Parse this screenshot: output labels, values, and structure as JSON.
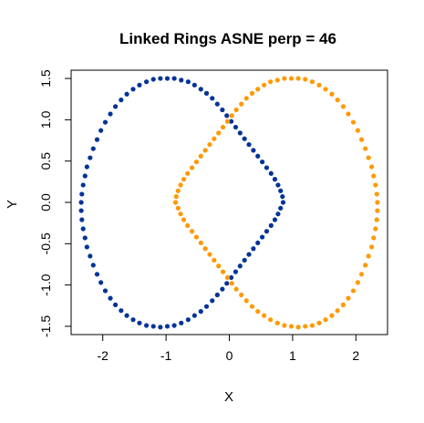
{
  "chart_data": {
    "type": "scatter",
    "title": "Linked Rings ASNE perp = 46",
    "xlabel": "X",
    "ylabel": "Y",
    "xlim": [
      -2.5,
      2.5
    ],
    "ylim": [
      -1.6,
      1.6
    ],
    "x_ticks": [
      -2,
      -1,
      0,
      1,
      2
    ],
    "y_ticks": [
      -1.5,
      -1.0,
      -0.5,
      0.0,
      0.5,
      1.0,
      1.5
    ],
    "x_tick_labels": [
      "-2",
      "-1",
      "0",
      "1",
      "2"
    ],
    "y_tick_labels": [
      "-1.5",
      "-1.0",
      "-0.5",
      "0.0",
      "0.5",
      "1.0",
      "1.5"
    ],
    "grid": false,
    "legend": "none",
    "series": [
      {
        "color": "#003399",
        "points": [
          [
            0.85,
            0.0
          ],
          [
            0.84,
            0.07
          ],
          [
            0.81,
            0.14
          ],
          [
            0.77,
            0.21
          ],
          [
            0.72,
            0.28
          ],
          [
            0.66,
            0.35
          ],
          [
            0.59,
            0.42
          ],
          [
            0.52,
            0.49
          ],
          [
            0.45,
            0.56
          ],
          [
            0.38,
            0.63
          ],
          [
            0.31,
            0.7
          ],
          [
            0.24,
            0.77
          ],
          [
            0.17,
            0.84
          ],
          [
            0.1,
            0.91
          ],
          [
            0.03,
            0.98
          ],
          [
            -0.04,
            1.05
          ],
          [
            -0.11,
            1.12
          ],
          [
            -0.19,
            1.19
          ],
          [
            -0.27,
            1.26
          ],
          [
            -0.36,
            1.32
          ],
          [
            -0.45,
            1.37
          ],
          [
            -0.55,
            1.42
          ],
          [
            -0.65,
            1.46
          ],
          [
            -0.76,
            1.48
          ],
          [
            -0.87,
            1.5
          ],
          [
            -0.98,
            1.5
          ],
          [
            -1.09,
            1.5
          ],
          [
            -1.2,
            1.49
          ],
          [
            -1.31,
            1.46
          ],
          [
            -1.42,
            1.42
          ],
          [
            -1.52,
            1.37
          ],
          [
            -1.62,
            1.31
          ],
          [
            -1.71,
            1.24
          ],
          [
            -1.8,
            1.16
          ],
          [
            -1.88,
            1.07
          ],
          [
            -1.96,
            0.97
          ],
          [
            -2.03,
            0.87
          ],
          [
            -2.09,
            0.76
          ],
          [
            -2.15,
            0.65
          ],
          [
            -2.2,
            0.54
          ],
          [
            -2.25,
            0.43
          ],
          [
            -2.28,
            0.32
          ],
          [
            -2.31,
            0.21
          ],
          [
            -2.33,
            0.1
          ],
          [
            -2.34,
            0.0
          ],
          [
            -2.34,
            -0.1
          ],
          [
            -2.33,
            -0.21
          ],
          [
            -2.31,
            -0.32
          ],
          [
            -2.28,
            -0.43
          ],
          [
            -2.25,
            -0.54
          ],
          [
            -2.2,
            -0.65
          ],
          [
            -2.15,
            -0.76
          ],
          [
            -2.09,
            -0.87
          ],
          [
            -2.03,
            -0.97
          ],
          [
            -1.96,
            -1.07
          ],
          [
            -1.88,
            -1.16
          ],
          [
            -1.8,
            -1.24
          ],
          [
            -1.71,
            -1.31
          ],
          [
            -1.62,
            -1.37
          ],
          [
            -1.52,
            -1.42
          ],
          [
            -1.42,
            -1.46
          ],
          [
            -1.31,
            -1.49
          ],
          [
            -1.2,
            -1.5
          ],
          [
            -1.09,
            -1.51
          ],
          [
            -0.98,
            -1.5
          ],
          [
            -0.87,
            -1.49
          ],
          [
            -0.76,
            -1.46
          ],
          [
            -0.65,
            -1.42
          ],
          [
            -0.55,
            -1.37
          ],
          [
            -0.45,
            -1.32
          ],
          [
            -0.36,
            -1.26
          ],
          [
            -0.27,
            -1.19
          ],
          [
            -0.19,
            -1.12
          ],
          [
            -0.11,
            -1.05
          ],
          [
            -0.04,
            -0.98
          ],
          [
            0.03,
            -0.91
          ],
          [
            0.1,
            -0.84
          ],
          [
            0.17,
            -0.77
          ],
          [
            0.24,
            -0.7
          ],
          [
            0.31,
            -0.63
          ],
          [
            0.38,
            -0.56
          ],
          [
            0.45,
            -0.49
          ],
          [
            0.52,
            -0.42
          ],
          [
            0.59,
            -0.35
          ],
          [
            0.66,
            -0.28
          ],
          [
            0.72,
            -0.21
          ],
          [
            0.77,
            -0.14
          ],
          [
            0.81,
            -0.07
          ]
        ]
      },
      {
        "color": "#FF9900",
        "points": [
          [
            -0.85,
            0.0
          ],
          [
            -0.84,
            0.07
          ],
          [
            -0.81,
            0.14
          ],
          [
            -0.77,
            0.21
          ],
          [
            -0.72,
            0.28
          ],
          [
            -0.66,
            0.35
          ],
          [
            -0.59,
            0.42
          ],
          [
            -0.52,
            0.49
          ],
          [
            -0.45,
            0.56
          ],
          [
            -0.38,
            0.63
          ],
          [
            -0.31,
            0.7
          ],
          [
            -0.24,
            0.77
          ],
          [
            -0.17,
            0.84
          ],
          [
            -0.1,
            0.91
          ],
          [
            -0.03,
            0.98
          ],
          [
            0.04,
            1.05
          ],
          [
            0.11,
            1.12
          ],
          [
            0.19,
            1.19
          ],
          [
            0.27,
            1.26
          ],
          [
            0.36,
            1.32
          ],
          [
            0.45,
            1.37
          ],
          [
            0.55,
            1.42
          ],
          [
            0.65,
            1.46
          ],
          [
            0.76,
            1.48
          ],
          [
            0.87,
            1.5
          ],
          [
            0.98,
            1.5
          ],
          [
            1.09,
            1.5
          ],
          [
            1.2,
            1.49
          ],
          [
            1.31,
            1.46
          ],
          [
            1.42,
            1.42
          ],
          [
            1.52,
            1.37
          ],
          [
            1.62,
            1.31
          ],
          [
            1.71,
            1.24
          ],
          [
            1.8,
            1.16
          ],
          [
            1.88,
            1.07
          ],
          [
            1.96,
            0.97
          ],
          [
            2.03,
            0.87
          ],
          [
            2.09,
            0.76
          ],
          [
            2.15,
            0.65
          ],
          [
            2.2,
            0.54
          ],
          [
            2.25,
            0.43
          ],
          [
            2.28,
            0.32
          ],
          [
            2.31,
            0.21
          ],
          [
            2.33,
            0.1
          ],
          [
            2.34,
            0.0
          ],
          [
            2.34,
            -0.1
          ],
          [
            2.33,
            -0.21
          ],
          [
            2.31,
            -0.32
          ],
          [
            2.28,
            -0.43
          ],
          [
            2.25,
            -0.54
          ],
          [
            2.2,
            -0.65
          ],
          [
            2.15,
            -0.76
          ],
          [
            2.09,
            -0.87
          ],
          [
            2.03,
            -0.97
          ],
          [
            1.96,
            -1.07
          ],
          [
            1.88,
            -1.16
          ],
          [
            1.8,
            -1.24
          ],
          [
            1.71,
            -1.31
          ],
          [
            1.62,
            -1.37
          ],
          [
            1.52,
            -1.42
          ],
          [
            1.42,
            -1.46
          ],
          [
            1.31,
            -1.49
          ],
          [
            1.2,
            -1.5
          ],
          [
            1.09,
            -1.51
          ],
          [
            0.98,
            -1.5
          ],
          [
            0.87,
            -1.49
          ],
          [
            0.76,
            -1.46
          ],
          [
            0.65,
            -1.42
          ],
          [
            0.55,
            -1.37
          ],
          [
            0.45,
            -1.32
          ],
          [
            0.36,
            -1.26
          ],
          [
            0.27,
            -1.19
          ],
          [
            0.19,
            -1.12
          ],
          [
            0.11,
            -1.05
          ],
          [
            0.04,
            -0.98
          ],
          [
            -0.03,
            -0.91
          ],
          [
            -0.1,
            -0.84
          ],
          [
            -0.17,
            -0.77
          ],
          [
            -0.24,
            -0.7
          ],
          [
            -0.31,
            -0.63
          ],
          [
            -0.38,
            -0.56
          ],
          [
            -0.45,
            -0.49
          ],
          [
            -0.52,
            -0.42
          ],
          [
            -0.59,
            -0.35
          ],
          [
            -0.66,
            -0.28
          ],
          [
            -0.72,
            -0.21
          ],
          [
            -0.77,
            -0.14
          ],
          [
            -0.81,
            -0.07
          ]
        ]
      }
    ]
  }
}
